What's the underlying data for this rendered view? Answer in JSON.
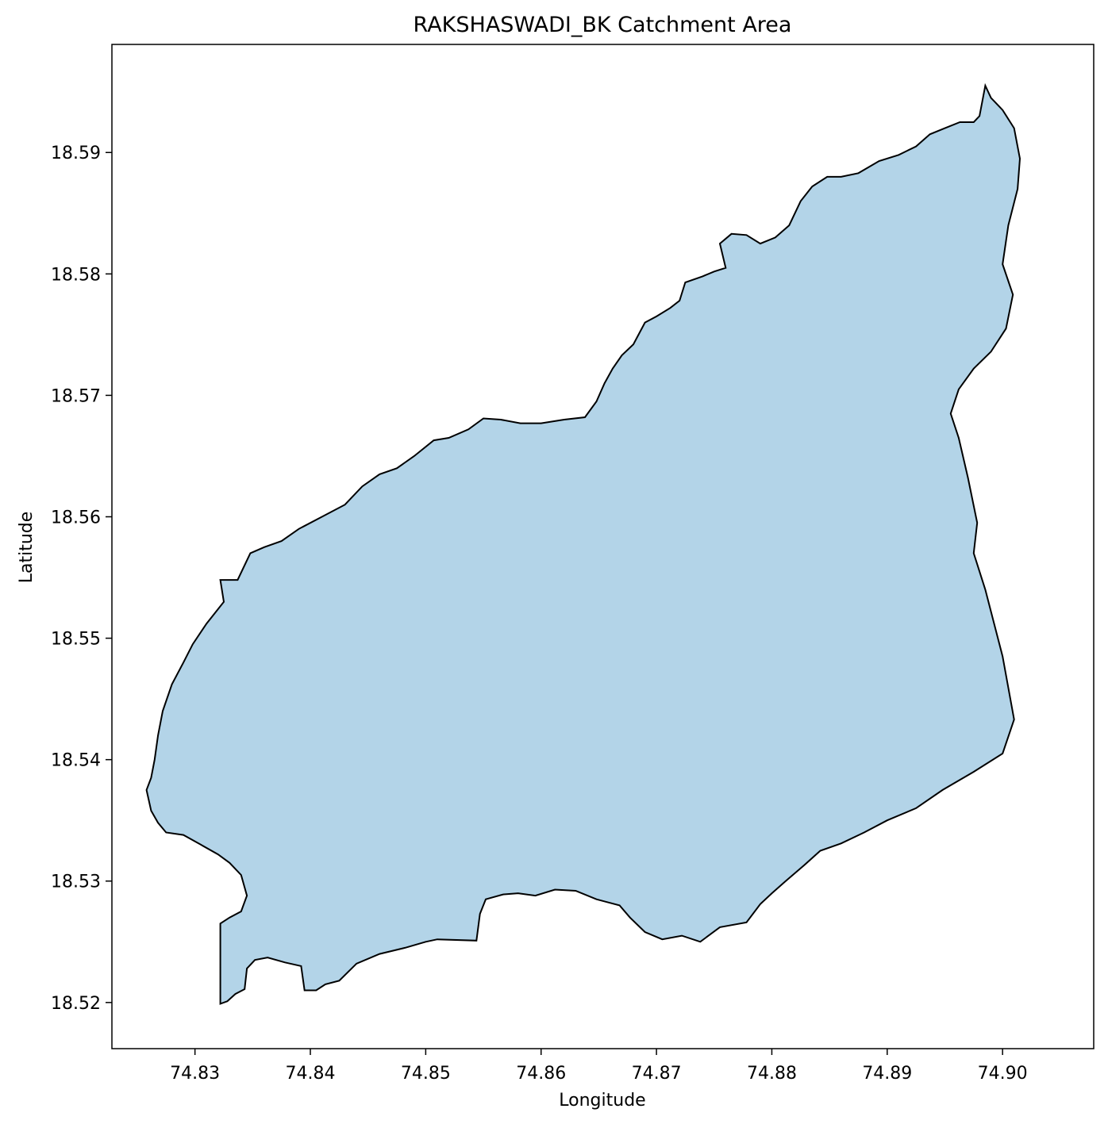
{
  "chart_data": {
    "type": "map",
    "title": "RAKSHASWADI_BK Catchment Area",
    "xlabel": "Longitude",
    "ylabel": "Latitude",
    "xlim": [
      74.8228,
      74.9079
    ],
    "ylim": [
      18.5162,
      18.5989
    ],
    "x_ticks": [
      "74.83",
      "74.84",
      "74.85",
      "74.86",
      "74.87",
      "74.88",
      "74.89",
      "74.90"
    ],
    "x_tick_values": [
      74.83,
      74.84,
      74.85,
      74.86,
      74.87,
      74.88,
      74.89,
      74.9
    ],
    "y_ticks": [
      "18.52",
      "18.53",
      "18.54",
      "18.55",
      "18.56",
      "18.57",
      "18.58",
      "18.59"
    ],
    "y_tick_values": [
      18.52,
      18.53,
      18.54,
      18.55,
      18.56,
      18.57,
      18.58,
      18.59
    ],
    "grid": false,
    "fill_color": "#b3d4e8",
    "edge_color": "#000000",
    "polygon": [
      [
        74.8322,
        18.5199
      ],
      [
        74.8328,
        18.5201
      ],
      [
        74.8335,
        18.5207
      ],
      [
        74.8343,
        18.5211
      ],
      [
        74.8345,
        18.5228
      ],
      [
        74.8352,
        18.5235
      ],
      [
        74.8363,
        18.5237
      ],
      [
        74.8378,
        18.5233
      ],
      [
        74.8392,
        18.523
      ],
      [
        74.8395,
        18.521
      ],
      [
        74.8405,
        18.521
      ],
      [
        74.8413,
        18.5215
      ],
      [
        74.8425,
        18.5218
      ],
      [
        74.844,
        18.5232
      ],
      [
        74.846,
        18.524
      ],
      [
        74.8482,
        18.5245
      ],
      [
        74.85,
        18.525
      ],
      [
        74.851,
        18.5252
      ],
      [
        74.8544,
        18.5251
      ],
      [
        74.8547,
        18.5273
      ],
      [
        74.8552,
        18.5285
      ],
      [
        74.8567,
        18.5289
      ],
      [
        74.858,
        18.529
      ],
      [
        74.8595,
        18.5288
      ],
      [
        74.8612,
        18.5293
      ],
      [
        74.863,
        18.5292
      ],
      [
        74.8648,
        18.5285
      ],
      [
        74.8668,
        18.528
      ],
      [
        74.8677,
        18.527
      ],
      [
        74.869,
        18.5258
      ],
      [
        74.8705,
        18.5252
      ],
      [
        74.8722,
        18.5255
      ],
      [
        74.8738,
        18.525
      ],
      [
        74.8755,
        18.5262
      ],
      [
        74.8778,
        18.5266
      ],
      [
        74.879,
        18.5281
      ],
      [
        74.88,
        18.529
      ],
      [
        74.8812,
        18.53
      ],
      [
        74.8828,
        18.5313
      ],
      [
        74.8842,
        18.5325
      ],
      [
        74.886,
        18.5331
      ],
      [
        74.888,
        18.534
      ],
      [
        74.89,
        18.535
      ],
      [
        74.8925,
        18.536
      ],
      [
        74.8948,
        18.5375
      ],
      [
        74.8975,
        18.539
      ],
      [
        74.9,
        18.5405
      ],
      [
        74.901,
        18.5433
      ],
      [
        74.9,
        18.5485
      ],
      [
        74.8985,
        18.554
      ],
      [
        74.8975,
        18.557
      ],
      [
        74.8978,
        18.5595
      ],
      [
        74.897,
        18.5632
      ],
      [
        74.8962,
        18.5665
      ],
      [
        74.8955,
        18.5685
      ],
      [
        74.8962,
        18.5705
      ],
      [
        74.8975,
        18.5722
      ],
      [
        74.899,
        18.5736
      ],
      [
        74.9003,
        18.5755
      ],
      [
        74.9009,
        18.5783
      ],
      [
        74.9,
        18.5808
      ],
      [
        74.9005,
        18.584
      ],
      [
        74.9013,
        18.587
      ],
      [
        74.9015,
        18.5895
      ],
      [
        74.901,
        18.592
      ],
      [
        74.9,
        18.5935
      ],
      [
        74.899,
        18.5945
      ],
      [
        74.8985,
        18.5955
      ],
      [
        74.898,
        18.593
      ],
      [
        74.8975,
        18.5925
      ],
      [
        74.8963,
        18.5925
      ],
      [
        74.895,
        18.592
      ],
      [
        74.8937,
        18.5915
      ],
      [
        74.8925,
        18.5905
      ],
      [
        74.891,
        18.5898
      ],
      [
        74.8893,
        18.5893
      ],
      [
        74.8875,
        18.5883
      ],
      [
        74.886,
        18.588
      ],
      [
        74.8848,
        18.588
      ],
      [
        74.8835,
        18.5872
      ],
      [
        74.8825,
        18.586
      ],
      [
        74.8815,
        18.584
      ],
      [
        74.8803,
        18.583
      ],
      [
        74.879,
        18.5825
      ],
      [
        74.8778,
        18.5832
      ],
      [
        74.8765,
        18.5833
      ],
      [
        74.8755,
        18.5825
      ],
      [
        74.876,
        18.5805
      ],
      [
        74.875,
        18.5802
      ],
      [
        74.874,
        18.5798
      ],
      [
        74.8725,
        18.5793
      ],
      [
        74.872,
        18.5778
      ],
      [
        74.8712,
        18.5772
      ],
      [
        74.87,
        18.5765
      ],
      [
        74.869,
        18.576
      ],
      [
        74.868,
        18.5742
      ],
      [
        74.867,
        18.5733
      ],
      [
        74.8662,
        18.5722
      ],
      [
        74.8655,
        18.571
      ],
      [
        74.8648,
        18.5695
      ],
      [
        74.8638,
        18.5682
      ],
      [
        74.862,
        18.568
      ],
      [
        74.86,
        18.5677
      ],
      [
        74.8582,
        18.5677
      ],
      [
        74.8565,
        18.568
      ],
      [
        74.855,
        18.5681
      ],
      [
        74.8537,
        18.5672
      ],
      [
        74.852,
        18.5665
      ],
      [
        74.8507,
        18.5663
      ],
      [
        74.849,
        18.565
      ],
      [
        74.8475,
        18.564
      ],
      [
        74.846,
        18.5635
      ],
      [
        74.8445,
        18.5625
      ],
      [
        74.843,
        18.561
      ],
      [
        74.841,
        18.56
      ],
      [
        74.839,
        18.559
      ],
      [
        74.8375,
        18.558
      ],
      [
        74.836,
        18.5575
      ],
      [
        74.8348,
        18.557
      ],
      [
        74.8337,
        18.5548
      ],
      [
        74.8322,
        18.5548
      ],
      [
        74.8325,
        18.553
      ],
      [
        74.831,
        18.5512
      ],
      [
        74.8298,
        18.5495
      ],
      [
        74.829,
        18.548
      ],
      [
        74.828,
        18.5462
      ],
      [
        74.8272,
        18.544
      ],
      [
        74.8268,
        18.542
      ],
      [
        74.8265,
        18.54
      ],
      [
        74.8262,
        18.5385
      ],
      [
        74.8258,
        18.5375
      ],
      [
        74.8262,
        18.5358
      ],
      [
        74.8268,
        18.5348
      ],
      [
        74.8275,
        18.534
      ],
      [
        74.829,
        18.5338
      ],
      [
        74.8305,
        18.533
      ],
      [
        74.832,
        18.5322
      ],
      [
        74.833,
        18.5315
      ],
      [
        74.834,
        18.5305
      ],
      [
        74.8345,
        18.5288
      ],
      [
        74.834,
        18.5275
      ],
      [
        74.833,
        18.527
      ],
      [
        74.8322,
        18.5265
      ]
    ]
  }
}
